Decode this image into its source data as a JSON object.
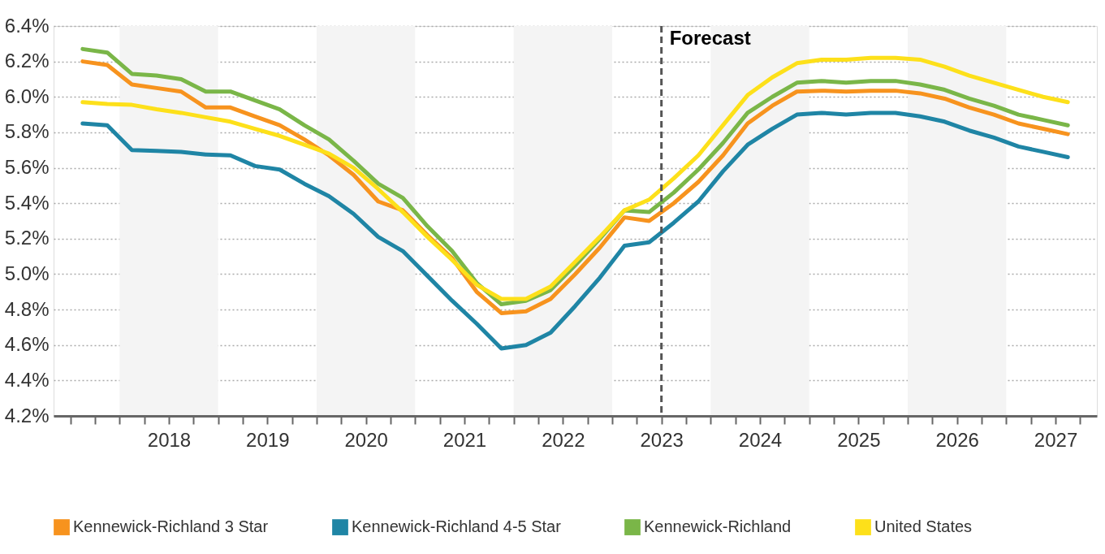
{
  "chart_data": {
    "type": "line",
    "x": [
      2017.625,
      2017.875,
      2018.125,
      2018.375,
      2018.625,
      2018.875,
      2019.125,
      2019.375,
      2019.625,
      2019.875,
      2020.125,
      2020.375,
      2020.625,
      2020.875,
      2021.125,
      2021.375,
      2021.625,
      2021.875,
      2022.125,
      2022.375,
      2022.625,
      2022.875,
      2023.125,
      2023.375,
      2023.625,
      2023.875,
      2024.125,
      2024.375,
      2024.625,
      2024.875,
      2025.125,
      2025.375,
      2025.625,
      2025.875,
      2026.125,
      2026.375,
      2026.625,
      2026.875,
      2027.125,
      2027.375,
      2027.625
    ],
    "series": [
      {
        "name": "Kennewick-Richland 3 Star",
        "color": "#f7931e",
        "values": [
          6.2,
          6.18,
          6.07,
          6.05,
          6.03,
          5.94,
          5.94,
          5.89,
          5.84,
          5.76,
          5.67,
          5.56,
          5.41,
          5.36,
          5.22,
          5.09,
          4.9,
          4.78,
          4.79,
          4.86,
          5.0,
          5.15,
          5.32,
          5.3,
          5.4,
          5.52,
          5.67,
          5.85,
          5.95,
          6.03,
          6.035,
          6.03,
          6.035,
          6.035,
          6.02,
          5.99,
          5.94,
          5.9,
          5.85,
          5.82,
          5.79
        ]
      },
      {
        "name": "Kennewick-Richland 4-5 Star",
        "color": "#1f85a5",
        "values": [
          5.85,
          5.84,
          5.7,
          5.695,
          5.69,
          5.675,
          5.67,
          5.61,
          5.59,
          5.51,
          5.44,
          5.34,
          5.21,
          5.13,
          4.99,
          4.85,
          4.72,
          4.58,
          4.6,
          4.67,
          4.82,
          4.98,
          5.16,
          5.18,
          5.29,
          5.41,
          5.58,
          5.73,
          5.82,
          5.9,
          5.91,
          5.9,
          5.91,
          5.91,
          5.89,
          5.86,
          5.81,
          5.77,
          5.72,
          5.69,
          5.66
        ]
      },
      {
        "name": "Kennewick-Richland",
        "color": "#7ab648",
        "values": [
          6.27,
          6.25,
          6.13,
          6.12,
          6.1,
          6.03,
          6.03,
          5.98,
          5.93,
          5.84,
          5.76,
          5.64,
          5.51,
          5.43,
          5.27,
          5.13,
          4.95,
          4.83,
          4.85,
          4.91,
          5.05,
          5.2,
          5.36,
          5.35,
          5.46,
          5.59,
          5.74,
          5.91,
          6.0,
          6.08,
          6.09,
          6.08,
          6.09,
          6.09,
          6.07,
          6.04,
          5.99,
          5.95,
          5.9,
          5.87,
          5.84
        ]
      },
      {
        "name": "United States",
        "color": "#fde01a",
        "values": [
          5.97,
          5.96,
          5.955,
          5.93,
          5.91,
          5.885,
          5.86,
          5.82,
          5.78,
          5.73,
          5.68,
          5.6,
          5.48,
          5.35,
          5.21,
          5.08,
          4.94,
          4.86,
          4.86,
          4.93,
          5.07,
          5.21,
          5.36,
          5.42,
          5.54,
          5.67,
          5.84,
          6.01,
          6.11,
          6.19,
          6.21,
          6.21,
          6.22,
          6.22,
          6.21,
          6.17,
          6.12,
          6.08,
          6.04,
          6.0,
          5.97
        ]
      }
    ],
    "xlim": [
      2017.33,
      2027.92
    ],
    "xticks": [
      {
        "value": 2017.5,
        "label": null
      },
      {
        "value": 2017.75,
        "label": null
      },
      {
        "value": 2018,
        "label": null
      },
      {
        "value": 2018.25,
        "label": null
      },
      {
        "value": 2018.5,
        "label": "2018"
      },
      {
        "value": 2018.75,
        "label": null
      },
      {
        "value": 2019,
        "label": null
      },
      {
        "value": 2019.25,
        "label": null
      },
      {
        "value": 2019.5,
        "label": "2019"
      },
      {
        "value": 2019.75,
        "label": null
      },
      {
        "value": 2020,
        "label": null
      },
      {
        "value": 2020.25,
        "label": null
      },
      {
        "value": 2020.5,
        "label": "2020"
      },
      {
        "value": 2020.75,
        "label": null
      },
      {
        "value": 2021,
        "label": null
      },
      {
        "value": 2021.25,
        "label": null
      },
      {
        "value": 2021.5,
        "label": "2021"
      },
      {
        "value": 2021.75,
        "label": null
      },
      {
        "value": 2022,
        "label": null
      },
      {
        "value": 2022.25,
        "label": null
      },
      {
        "value": 2022.5,
        "label": "2022"
      },
      {
        "value": 2022.75,
        "label": null
      },
      {
        "value": 2023,
        "label": null
      },
      {
        "value": 2023.25,
        "label": null
      },
      {
        "value": 2023.5,
        "label": "2023"
      },
      {
        "value": 2023.75,
        "label": null
      },
      {
        "value": 2024,
        "label": null
      },
      {
        "value": 2024.25,
        "label": null
      },
      {
        "value": 2024.5,
        "label": "2024"
      },
      {
        "value": 2024.75,
        "label": null
      },
      {
        "value": 2025,
        "label": null
      },
      {
        "value": 2025.25,
        "label": null
      },
      {
        "value": 2025.5,
        "label": "2025"
      },
      {
        "value": 2025.75,
        "label": null
      },
      {
        "value": 2026,
        "label": null
      },
      {
        "value": 2026.25,
        "label": null
      },
      {
        "value": 2026.5,
        "label": "2026"
      },
      {
        "value": 2026.75,
        "label": null
      },
      {
        "value": 2027,
        "label": null
      },
      {
        "value": 2027.25,
        "label": null
      },
      {
        "value": 2027.5,
        "label": "2027"
      },
      {
        "value": 2027.75,
        "label": null
      }
    ],
    "ylim": [
      4.2,
      6.4
    ],
    "yticks": [
      {
        "value": 4.2,
        "label": "4.2%"
      },
      {
        "value": 4.4,
        "label": "4.4%"
      },
      {
        "value": 4.6,
        "label": "4.6%"
      },
      {
        "value": 4.8,
        "label": "4.8%"
      },
      {
        "value": 5.0,
        "label": "5.0%"
      },
      {
        "value": 5.2,
        "label": "5.2%"
      },
      {
        "value": 5.4,
        "label": "5.4%"
      },
      {
        "value": 5.6,
        "label": "5.6%"
      },
      {
        "value": 5.8,
        "label": "5.8%"
      },
      {
        "value": 6.0,
        "label": "6.0%"
      },
      {
        "value": 6.2,
        "label": "6.2%"
      },
      {
        "value": 6.4,
        "label": "6.4%"
      }
    ],
    "bands": [
      {
        "axis": "x",
        "from": 2018,
        "to": 2019,
        "color": "#f4f4f4"
      },
      {
        "axis": "x",
        "from": 2020,
        "to": 2021,
        "color": "#f4f4f4"
      },
      {
        "axis": "x",
        "from": 2022,
        "to": 2023,
        "color": "#f4f4f4"
      },
      {
        "axis": "x",
        "from": 2024,
        "to": 2025,
        "color": "#f4f4f4"
      },
      {
        "axis": "x",
        "from": 2026,
        "to": 2027,
        "color": "#f4f4f4"
      }
    ],
    "ref_lines": [
      {
        "axis": "x",
        "value": 2023.5,
        "label": "Forecast",
        "color": "#555555",
        "line_style": "dashed"
      }
    ],
    "grid": "y",
    "legend": "bottom",
    "marker": "none",
    "line_style": "solid"
  }
}
